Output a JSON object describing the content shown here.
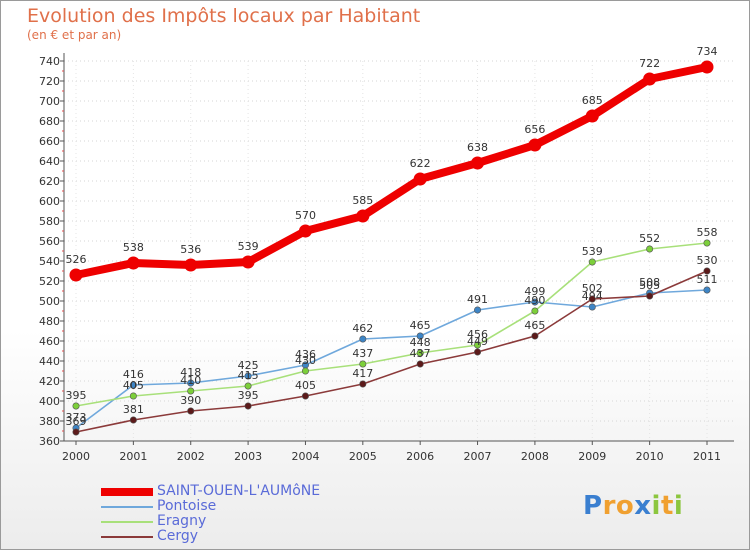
{
  "title": "Evolution des Impôts locaux par Habitant",
  "subtitle": "(en € et par an)",
  "logo": {
    "letters": [
      "P",
      "r",
      "o",
      "x",
      "i",
      "t",
      "i"
    ],
    "colors": [
      "#3a7fd0",
      "#f0a030",
      "#f0a030",
      "#3a7fd0",
      "#8cc63f",
      "#f0a030",
      "#8cc63f"
    ]
  },
  "chart_data": {
    "type": "line",
    "title": "Evolution des Impôts locaux par Habitant",
    "subtitle": "(en € et par an)",
    "xlabel": "",
    "ylabel": "",
    "x": [
      "2000",
      "2001",
      "2002",
      "2003",
      "2004",
      "2005",
      "2006",
      "2007",
      "2008",
      "2009",
      "2010",
      "2011"
    ],
    "ylim": [
      360,
      740
    ],
    "yticks": [
      360,
      380,
      400,
      420,
      440,
      460,
      480,
      500,
      520,
      540,
      560,
      580,
      600,
      620,
      640,
      660,
      680,
      700,
      720,
      740
    ],
    "legend_position": "bottom-left",
    "series": [
      {
        "name": "SAINT-OUEN-L'AUMôNE",
        "color": "#ee0000",
        "marker_color": "#ee0000",
        "emphasis": true,
        "values": [
          526,
          538,
          536,
          539,
          570,
          585,
          622,
          638,
          656,
          685,
          722,
          734
        ],
        "labels": [
          "526",
          "538",
          "536",
          "539",
          "570",
          "585",
          "622",
          "638",
          "656",
          "685",
          "722",
          "734"
        ]
      },
      {
        "name": "Pontoise",
        "color": "#6fa8dc",
        "marker_color": "#3d85c6",
        "emphasis": false,
        "values": [
          373,
          416,
          418,
          425,
          436,
          462,
          465,
          491,
          499,
          494,
          508,
          511
        ],
        "labels": [
          "373",
          "416",
          "418",
          "425",
          "436",
          "462",
          "465",
          "491",
          "499",
          "494",
          "508",
          "511"
        ]
      },
      {
        "name": "Eragny",
        "color": "#a8e07a",
        "marker_color": "#7ccf3a",
        "emphasis": false,
        "values": [
          395,
          405,
          410,
          415,
          430,
          437,
          448,
          456,
          490,
          539,
          552,
          558
        ],
        "labels": [
          "395",
          "405",
          "410",
          "415",
          "430",
          "437",
          "448",
          "456",
          "490",
          "539",
          "552",
          "558"
        ]
      },
      {
        "name": "Cergy",
        "color": "#8b3a3a",
        "marker_color": "#5c1a1a",
        "emphasis": false,
        "values": [
          369,
          381,
          390,
          395,
          405,
          417,
          437,
          449,
          465,
          502,
          505,
          530
        ],
        "labels": [
          "369",
          "381",
          "390",
          "395",
          "405",
          "417",
          "437",
          "449",
          "465",
          "502",
          "505",
          "530"
        ]
      }
    ]
  }
}
